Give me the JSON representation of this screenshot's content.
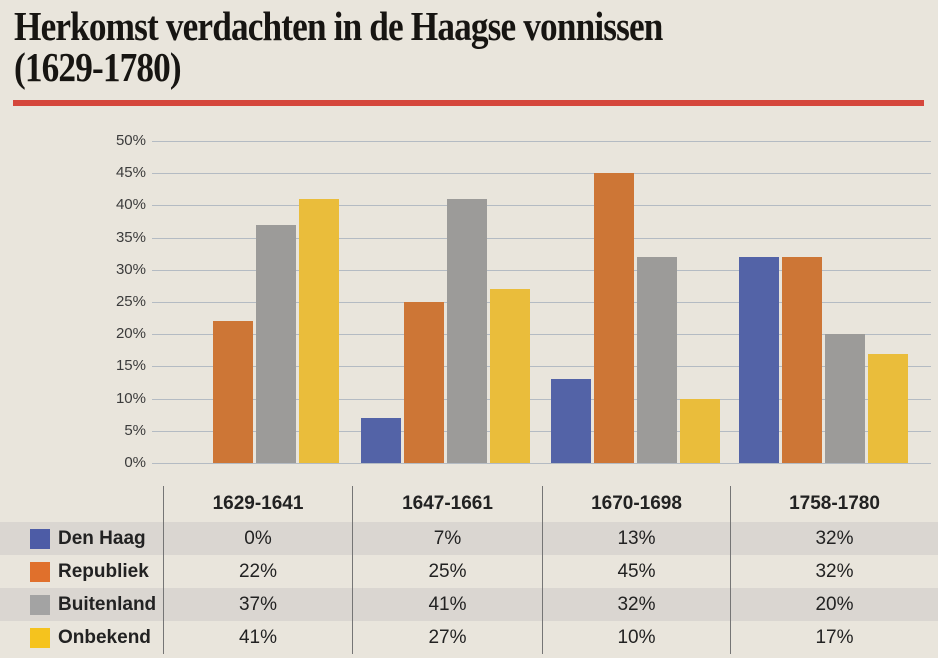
{
  "page": {
    "background": "#e9e5dc",
    "title_line1": "Herkomst verdachten in de Haagse vonnissen",
    "title_line2": "(1629-1780)",
    "accent_rule_color": "#d5473c"
  },
  "chart_data": {
    "type": "bar",
    "title": "Herkomst verdachten in de Haagse vonnissen (1629-1780)",
    "categories": [
      "1629-1641",
      "1647-1661",
      "1670-1698",
      "1758-1780"
    ],
    "series": [
      {
        "name": "Den Haag",
        "color": "#5363a7",
        "legend_color": "#4d5ca6",
        "values": [
          0,
          7,
          13,
          32
        ]
      },
      {
        "name": "Republiek",
        "color": "#cd7636",
        "legend_color": "#e0702c",
        "values": [
          22,
          25,
          45,
          32
        ]
      },
      {
        "name": "Buitenland",
        "color": "#9c9b99",
        "legend_color": "#a3a3a3",
        "values": [
          37,
          41,
          32,
          20
        ]
      },
      {
        "name": "Onbekend",
        "color": "#eabd3b",
        "legend_color": "#f5c31e",
        "values": [
          41,
          27,
          10,
          17
        ]
      }
    ],
    "xlabel": "",
    "ylabel": "",
    "ylim": [
      0,
      50
    ],
    "ytick_step": 5,
    "ytick_labels": [
      "0%",
      "5%",
      "10%",
      "15%",
      "20%",
      "25%",
      "30%",
      "35%",
      "40%",
      "45%",
      "50%"
    ],
    "grid": true,
    "gridline_color": "#b4bbc3",
    "value_suffix": "%",
    "legend_position": "table-left-column"
  },
  "table": {
    "column_headers": [
      "1629-1641",
      "1647-1661",
      "1670-1698",
      "1758-1780"
    ],
    "rows": [
      {
        "label": "Den Haag",
        "values": [
          "0%",
          "7%",
          "13%",
          "32%"
        ]
      },
      {
        "label": "Republiek",
        "values": [
          "22%",
          "25%",
          "45%",
          "32%"
        ]
      },
      {
        "label": "Buitenland",
        "values": [
          "37%",
          "41%",
          "32%",
          "20%"
        ]
      },
      {
        "label": "Onbekend",
        "values": [
          "41%",
          "27%",
          "10%",
          "17%"
        ]
      }
    ]
  }
}
